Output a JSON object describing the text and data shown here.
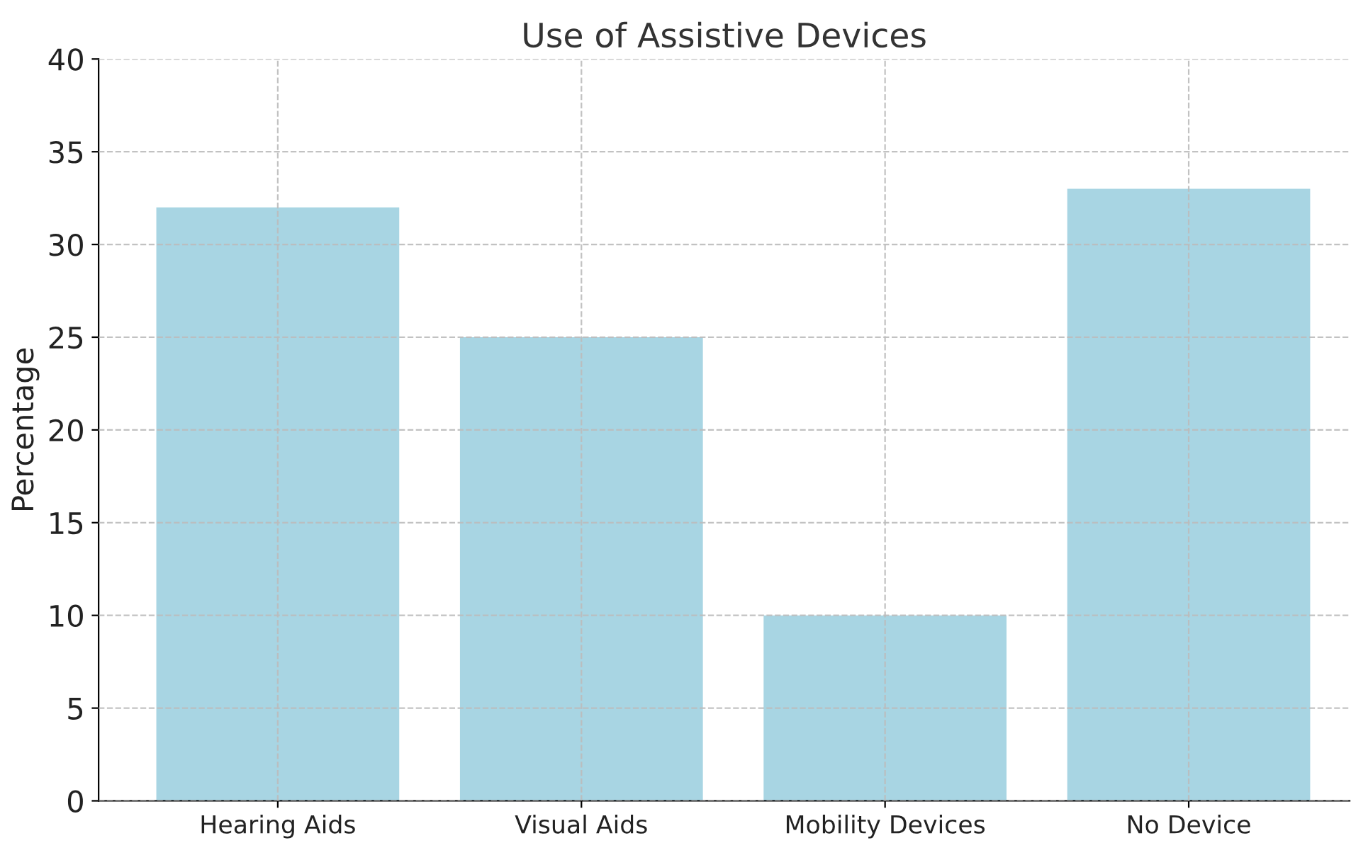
{
  "chart_data": {
    "type": "bar",
    "title": "Use of Assistive Devices",
    "ylabel": "Percentage",
    "categories": [
      "Hearing Aids",
      "Visual Aids",
      "Mobility Devices",
      "No Device"
    ],
    "values": [
      32,
      25,
      10,
      33
    ],
    "color": "#a8d5e3",
    "ylim": [
      0,
      40
    ],
    "yticks": [
      0,
      5,
      10,
      15,
      20,
      25,
      30,
      35,
      40
    ],
    "grid": true
  }
}
